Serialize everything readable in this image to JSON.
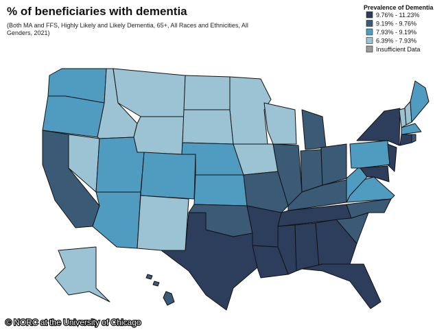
{
  "title": "% of beneficiaries with dementia",
  "subtitle": [
    "(Both MA and FFS, Highly Likely and Likely Dementia, 65+, All Races and Ethnicities, All",
    "Genders, 2021)"
  ],
  "legend": {
    "title": "Prevalence of Dementia",
    "items": [
      {
        "label": "9.76% - 11.23%",
        "color": "#2c3e5c"
      },
      {
        "label": "9.19% - 9.76%",
        "color": "#3a5a75"
      },
      {
        "label": "7.93% - 9.19%",
        "color": "#4f9cc0"
      },
      {
        "label": "6.39% - 7.93%",
        "color": "#9cc3d3"
      },
      {
        "label": "Insufficient Data",
        "color": "#9a9a9a"
      }
    ]
  },
  "footer": "© NORC at the University of Chicago"
}
